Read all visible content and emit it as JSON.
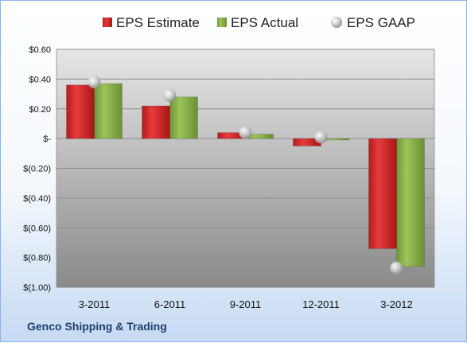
{
  "chart_data": {
    "type": "bar",
    "categories": [
      "3-2011",
      "6-2011",
      "9-2011",
      "12-2011",
      "3-2012"
    ],
    "series": [
      {
        "name": "EPS Estimate",
        "kind": "bar",
        "color": "#d42a2a",
        "values": [
          0.36,
          0.22,
          0.04,
          -0.05,
          -0.74
        ]
      },
      {
        "name": "EPS Actual",
        "kind": "bar",
        "color": "#8cb54a",
        "values": [
          0.37,
          0.28,
          0.03,
          -0.01,
          -0.86
        ]
      },
      {
        "name": "EPS GAAP",
        "kind": "marker",
        "color": "#c8c8c8",
        "values": [
          0.38,
          0.29,
          0.04,
          0.01,
          -0.87
        ]
      }
    ],
    "y_ticks": [
      "$0.60",
      "$0.40",
      "$0.20",
      "$-",
      "$(0.20)",
      "$(0.40)",
      "$(0.60)",
      "$(0.80)",
      "$(1.00)"
    ],
    "y_tick_values": [
      0.6,
      0.4,
      0.2,
      0,
      -0.2,
      -0.4,
      -0.6,
      -0.8,
      -1.0
    ],
    "ylim": [
      -1.0,
      0.6
    ],
    "grid": true,
    "legend_position": "top"
  },
  "company": "Genco Shipping & Trading"
}
